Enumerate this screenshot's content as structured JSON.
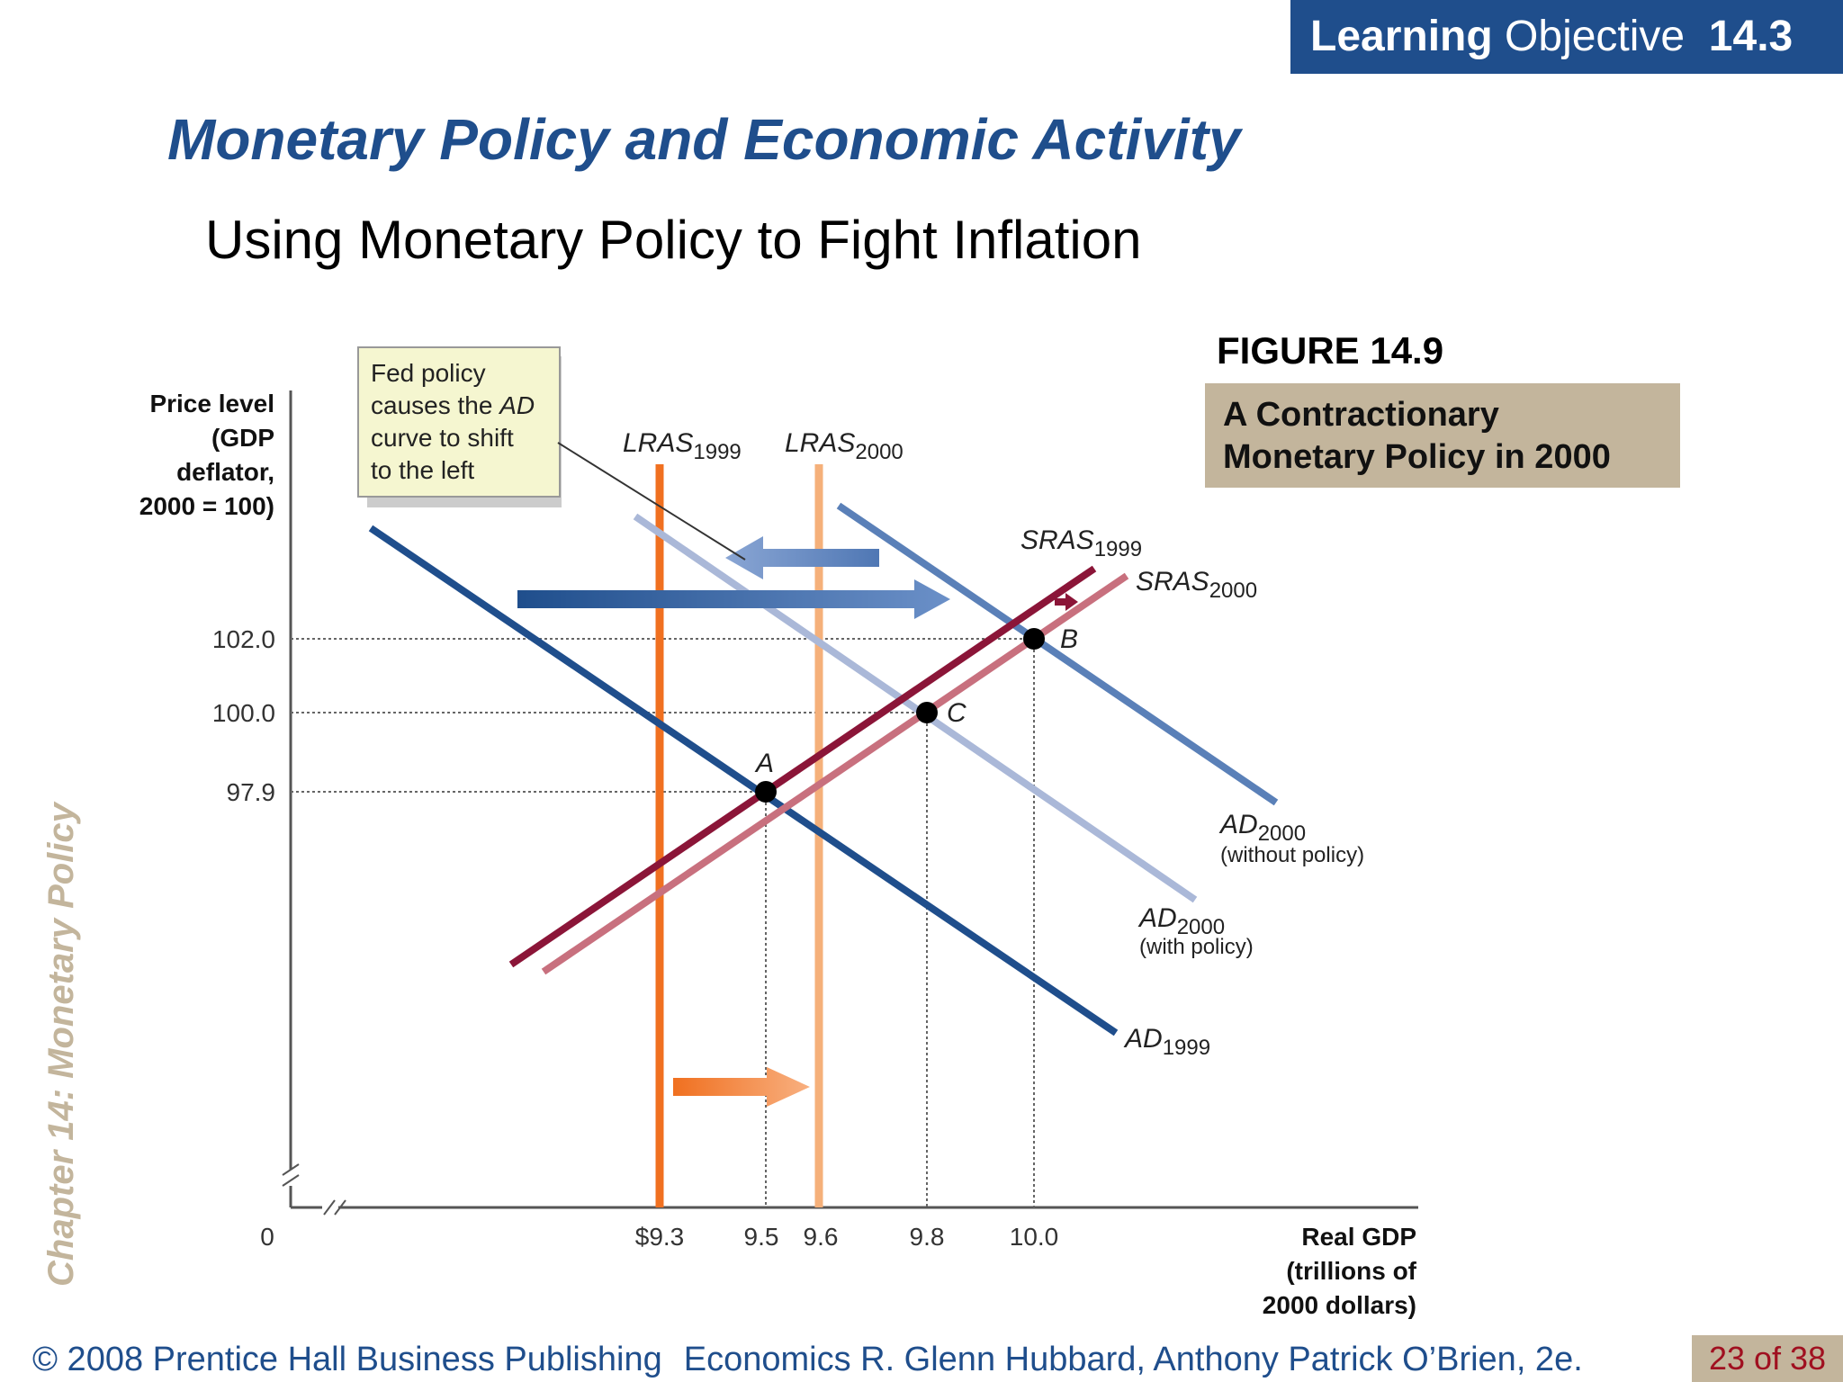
{
  "header": {
    "lo_bold": "Learning",
    "lo_rest": "Objective",
    "lo_num": "14.3"
  },
  "title": "Monetary Policy and Economic Activity",
  "subtitle": "Using Monetary Policy to Fight Inflation",
  "figure": {
    "label": "FIGURE 14.9",
    "caption_line1": "A Contractionary",
    "caption_line2": "Monetary Policy in 2000"
  },
  "sidebar_text": "Chapter 14:  Monetary Policy",
  "footer": {
    "copyright": "© 2008 Prentice Hall Business Publishing",
    "book": "Economics  R. Glenn Hubbard, Anthony Patrick O’Brien, 2e.",
    "page": "23 of 38"
  },
  "chart_data": {
    "type": "line",
    "ylabel_lines": [
      "Price level",
      "(GDP",
      "deflator,",
      "2000 = 100)"
    ],
    "xlabel_lines": [
      "Real GDP",
      "(trillions of",
      "2000 dollars)"
    ],
    "origin_label": "0",
    "x_ticks": [
      "$9.3",
      "9.5",
      "9.6",
      "9.8",
      "10.0"
    ],
    "y_ticks": [
      "102.0",
      "100.0",
      "97.9"
    ],
    "callout_lines": [
      "Fed policy",
      "causes the AD",
      "curve to shift",
      "to the left"
    ],
    "callout_italic_word": "AD",
    "curves": [
      {
        "id": "LRAS1999",
        "base": "LRAS",
        "sub": "1999",
        "type": "vertical",
        "x": 9.3,
        "color": "#f07020"
      },
      {
        "id": "LRAS2000",
        "base": "LRAS",
        "sub": "2000",
        "type": "vertical",
        "x": 9.6,
        "color": "#f5b07a"
      },
      {
        "id": "SRAS1999",
        "base": "SRAS",
        "sub": "1999",
        "type": "upward",
        "color": "#8b1538"
      },
      {
        "id": "SRAS2000",
        "base": "SRAS",
        "sub": "2000",
        "type": "upward",
        "color": "#c8707e"
      },
      {
        "id": "AD1999",
        "base": "AD",
        "sub": "1999",
        "type": "downward",
        "color": "#1f4e8c"
      },
      {
        "id": "AD2000_without",
        "base": "AD",
        "sub": "2000",
        "note": "(without policy)",
        "type": "downward",
        "color": "#5a80b8"
      },
      {
        "id": "AD2000_with",
        "base": "AD",
        "sub": "2000",
        "note": "(with policy)",
        "type": "downward",
        "color": "#aab8d8"
      }
    ],
    "points": [
      {
        "label": "A",
        "x": 9.5,
        "y": 97.9
      },
      {
        "label": "C",
        "x": 9.8,
        "y": 100.0
      },
      {
        "label": "B",
        "x": 10.0,
        "y": 102.0
      }
    ]
  }
}
